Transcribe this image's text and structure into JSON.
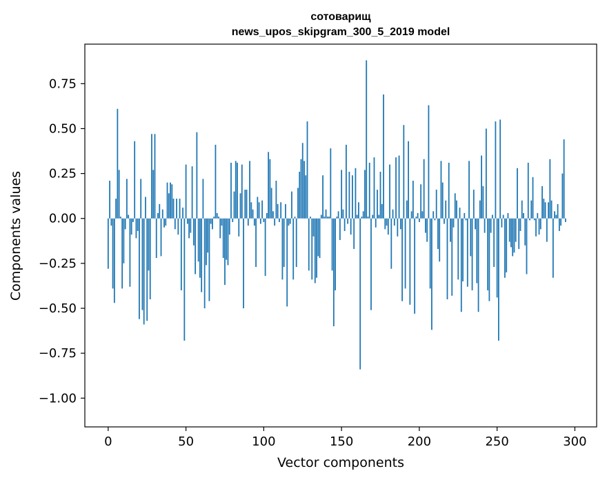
{
  "chart_data": {
    "type": "bar",
    "title": "сотоварищ",
    "subtitle": "news_upos_skipgram_300_5_2019 model",
    "xlabel": "Vector components",
    "ylabel": "Components values",
    "xlim": [
      -15,
      314
    ],
    "ylim": [
      -1.16,
      0.97
    ],
    "xticks": [
      0,
      50,
      100,
      150,
      200,
      250,
      300
    ],
    "yticks": [
      -1.0,
      -0.75,
      -0.5,
      -0.25,
      0.0,
      0.25,
      0.5,
      0.75
    ],
    "ytick_labels": [
      "−1.00",
      "−0.75",
      "−0.50",
      "−0.25",
      "0.00",
      "0.25",
      "0.50",
      "0.75"
    ],
    "grid": false,
    "bar_color": "#1f77b4",
    "x_start": 0,
    "values": [
      -0.28,
      0.21,
      -0.04,
      -0.39,
      -0.47,
      0.11,
      0.61,
      0.27,
      0.01,
      -0.39,
      -0.25,
      -0.06,
      0.22,
      0.02,
      -0.38,
      -0.09,
      -0.02,
      0.43,
      -0.11,
      -0.07,
      -0.56,
      0.22,
      -0.51,
      -0.59,
      0.12,
      -0.57,
      -0.29,
      -0.45,
      0.47,
      0.27,
      0.47,
      -0.22,
      0.03,
      0.08,
      -0.21,
      0.05,
      -0.05,
      -0.04,
      0.2,
      0.14,
      0.2,
      0.19,
      0.11,
      -0.06,
      0.11,
      -0.09,
      0.11,
      -0.4,
      0.06,
      -0.68,
      0.3,
      -0.03,
      -0.11,
      -0.08,
      0.29,
      -0.15,
      -0.31,
      0.48,
      -0.24,
      -0.33,
      -0.41,
      0.22,
      -0.5,
      -0.26,
      -0.19,
      -0.46,
      -0.03,
      -0.06,
      0.01,
      0.41,
      0.03,
      0.01,
      -0.11,
      -0.04,
      -0.22,
      -0.37,
      -0.23,
      -0.26,
      -0.09,
      0.31,
      -0.02,
      0.15,
      0.32,
      0.31,
      -0.1,
      0.14,
      0.3,
      -0.5,
      0.16,
      0.16,
      -0.04,
      0.32,
      0.09,
      0.05,
      -0.04,
      -0.27,
      0.12,
      0.09,
      -0.03,
      0.1,
      -0.02,
      -0.32,
      0.03,
      0.37,
      0.33,
      0.17,
      0.04,
      -0.04,
      0.21,
      0.08,
      -0.02,
      0.09,
      -0.34,
      -0.27,
      0.08,
      -0.49,
      -0.04,
      -0.03,
      0.15,
      -0.34,
      0.01,
      -0.27,
      0.17,
      0.26,
      0.33,
      0.42,
      0.32,
      0.24,
      0.54,
      -0.29,
      0.01,
      -0.34,
      -0.1,
      -0.36,
      -0.33,
      -0.21,
      -0.22,
      0.02,
      0.24,
      0.01,
      0.05,
      0.01,
      0.01,
      0.39,
      -0.29,
      -0.6,
      -0.4,
      0.01,
      0.04,
      -0.12,
      0.27,
      0.05,
      -0.07,
      0.41,
      -0.03,
      0.26,
      -0.09,
      0.24,
      -0.17,
      0.28,
      0.02,
      0.09,
      -0.84,
      0.01,
      0.04,
      0.27,
      0.88,
      0.01,
      0.31,
      -0.51,
      0.02,
      0.34,
      -0.05,
      0.16,
      0.02,
      0.26,
      0.08,
      0.69,
      -0.06,
      -0.04,
      -0.09,
      0.3,
      -0.28,
      0.05,
      -0.04,
      0.34,
      -0.1,
      0.35,
      -0.06,
      -0.46,
      0.52,
      -0.39,
      0.1,
      0.43,
      -0.48,
      0.04,
      0.21,
      -0.53,
      0.01,
      0.03,
      -0.02,
      0.19,
      0.04,
      0.33,
      -0.08,
      -0.13,
      0.63,
      -0.39,
      -0.62,
      0.04,
      -0.01,
      0.16,
      -0.17,
      -0.24,
      0.32,
      0.2,
      -0.03,
      0.1,
      -0.45,
      0.31,
      -0.13,
      -0.43,
      -0.05,
      0.14,
      0.1,
      -0.34,
      0.06,
      -0.52,
      -0.35,
      0.03,
      -0.01,
      -0.38,
      0.32,
      -0.21,
      -0.4,
      0.16,
      -0.06,
      -0.36,
      -0.52,
      0.1,
      0.35,
      0.18,
      -0.08,
      0.5,
      -0.4,
      -0.46,
      -0.08,
      0.02,
      -0.27,
      0.54,
      -0.44,
      -0.68,
      0.55,
      -0.05,
      0.02,
      -0.33,
      -0.3,
      0.03,
      -0.13,
      -0.16,
      -0.21,
      -0.19,
      -0.13,
      0.28,
      -0.17,
      -0.07,
      0.1,
      0.03,
      -0.15,
      -0.31,
      0.31,
      -0.01,
      0.1,
      0.23,
      -0.01,
      -0.1,
      0.03,
      -0.09,
      -0.06,
      0.18,
      0.11,
      0.09,
      -0.13,
      0.09,
      0.33,
      0.1,
      -0.33,
      0.04,
      0.02,
      0.08,
      -0.07,
      -0.04,
      0.25,
      0.44,
      -0.02
    ]
  }
}
